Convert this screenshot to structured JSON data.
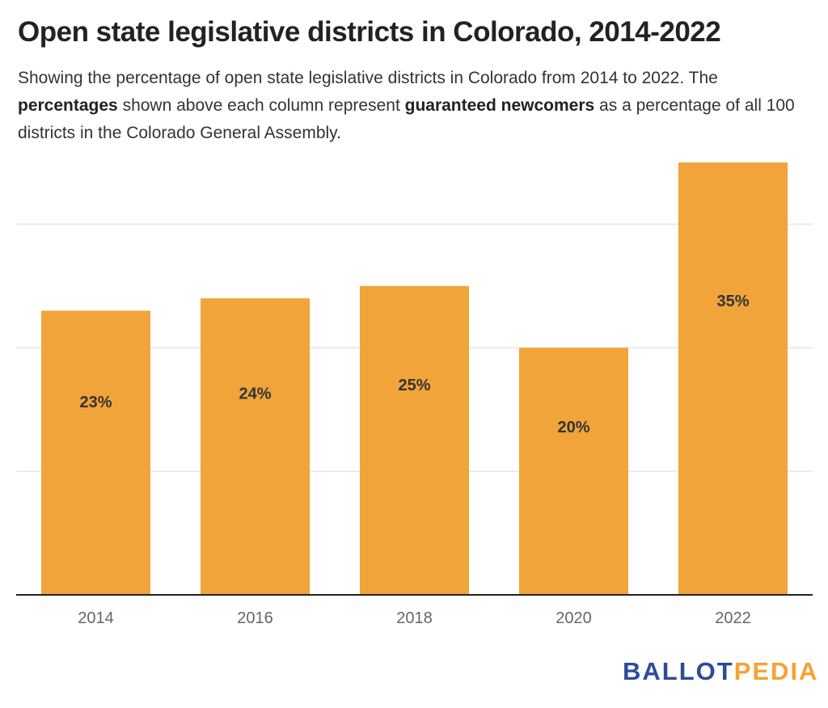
{
  "header": {
    "title": "Open state legislative districts in Colorado, 2014-2022",
    "subtitle_parts": [
      "Showing the percentage of open state legislative districts in Colorado from 2014 to 2022. The ",
      "percentages",
      " shown above each column represent ",
      "guaranteed newcomers",
      " as a percentage of all 100 districts in the Colorado General Assembly."
    ]
  },
  "chart_data": {
    "type": "bar",
    "title": "Open state legislative districts in Colorado, 2014-2022",
    "xlabel": "",
    "ylabel": "",
    "categories": [
      "2014",
      "2016",
      "2018",
      "2020",
      "2022"
    ],
    "values": [
      23,
      24,
      25,
      20,
      35
    ],
    "data_labels": [
      "23%",
      "24%",
      "25%",
      "20%",
      "35%"
    ],
    "ylim": [
      0,
      35
    ],
    "gridlines": [
      10,
      20,
      30
    ],
    "grid": true,
    "legend": "none",
    "bar_color": "#f0a43a",
    "gridline_color": "#e5e5e5",
    "axis_color": "#222222"
  },
  "branding": {
    "logo_part1": "BALLOT",
    "logo_part2": "PEDIA",
    "logo_color1": "#2b4c9b",
    "logo_color2": "#f4a335"
  }
}
